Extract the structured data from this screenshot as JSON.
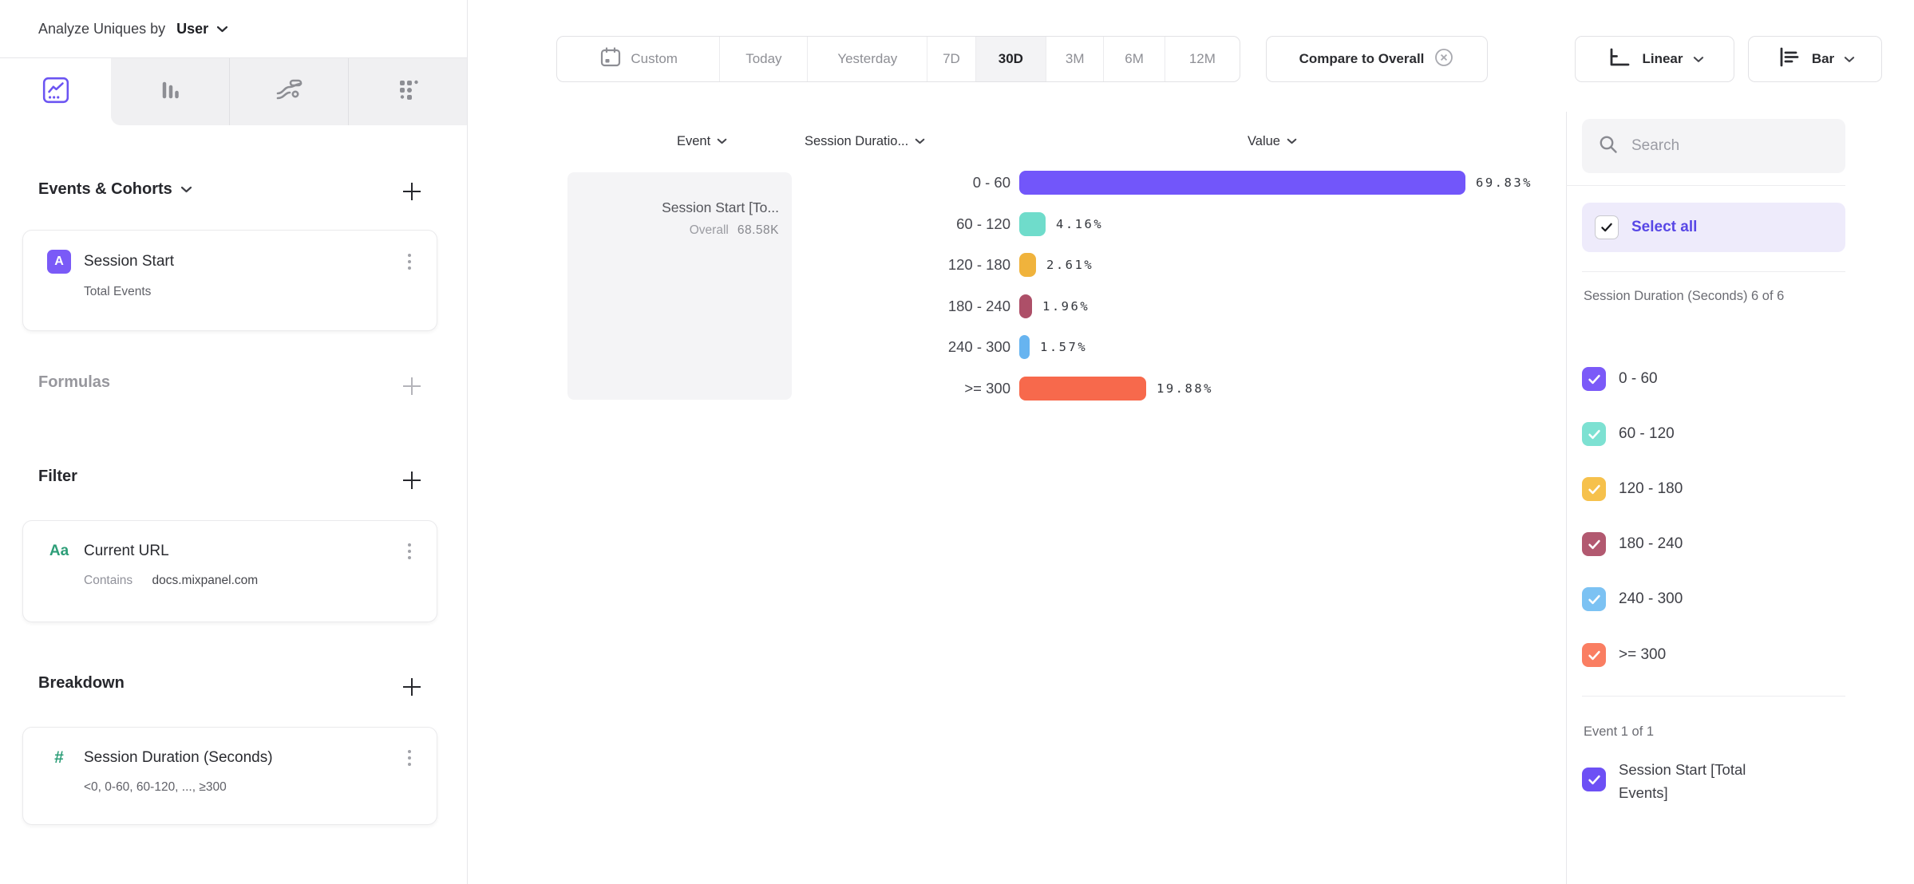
{
  "accent": "#7256fa",
  "left_panel": {
    "analyze_label": "Analyze Uniques by",
    "analyze_value": "User",
    "tab_icons": [
      "line-chart-icon",
      "bar-chart-icon",
      "flow-icon",
      "metrics-grid-icon"
    ],
    "events_section": {
      "title": "Events & Cohorts"
    },
    "event_card": {
      "badge": "A",
      "title": "Session Start",
      "subtitle": "Total Events"
    },
    "formulas_section": {
      "title": "Formulas"
    },
    "filter_section": {
      "title": "Filter"
    },
    "filter_card": {
      "badge": "Aa",
      "title": "Current URL",
      "operator": "Contains",
      "value": "docs.mixpanel.com"
    },
    "breakdown_section": {
      "title": "Breakdown"
    },
    "breakdown_card": {
      "badge": "#",
      "title": "Session Duration (Seconds)",
      "subtitle": "<0, 0-60, 60-120, ..., ≥300"
    }
  },
  "toolbar": {
    "ranges": [
      "Custom",
      "Today",
      "Yesterday",
      "7D",
      "30D",
      "3M",
      "6M",
      "12M"
    ],
    "active_range": "30D",
    "compare_label": "Compare to Overall",
    "scale_label": "Linear",
    "chart_type_label": "Bar"
  },
  "table": {
    "headers": [
      "Event",
      "Session Duratio...",
      "Value"
    ]
  },
  "event_card": {
    "title": "Session Start [To...",
    "overall_label": "Overall",
    "overall_value": "68.58K"
  },
  "chart_data": {
    "type": "bar",
    "orientation": "horizontal",
    "series_name": "Session Start [Total Events]",
    "overall_value": "68.58K",
    "categories": [
      "0 - 60",
      "60 - 120",
      "120 - 180",
      "180 - 240",
      "240 - 300",
      ">= 300"
    ],
    "values": [
      69.83,
      4.16,
      2.61,
      1.96,
      1.57,
      19.88
    ],
    "value_labels": [
      "69.83%",
      "4.16%",
      "2.61%",
      "1.96%",
      "1.57%",
      "19.88%"
    ],
    "unit": "%",
    "colors": [
      "#7256fa",
      "#6fdccb",
      "#f0b33c",
      "#ad4f68",
      "#67b4f0",
      "#f7694c"
    ],
    "grid": false,
    "legend_position": "right"
  },
  "sidebar": {
    "search_placeholder": "Search",
    "select_all_label": "Select all",
    "group_label": "Session Duration (Seconds) 6 of 6",
    "items": [
      {
        "label": "0 - 60",
        "color": "#7b5af8"
      },
      {
        "label": "60 - 120",
        "color": "#7de1d2"
      },
      {
        "label": "120 - 180",
        "color": "#f6c14c"
      },
      {
        "label": "180 - 240",
        "color": "#b25970"
      },
      {
        "label": "240 - 300",
        "color": "#7cc2f3"
      },
      {
        "label": ">= 300",
        "color": "#fa7e62"
      }
    ],
    "event_group_label": "Event 1 of 1",
    "event_item": {
      "label": "Session Start [Total Events]",
      "color": "#6d50f5"
    }
  }
}
